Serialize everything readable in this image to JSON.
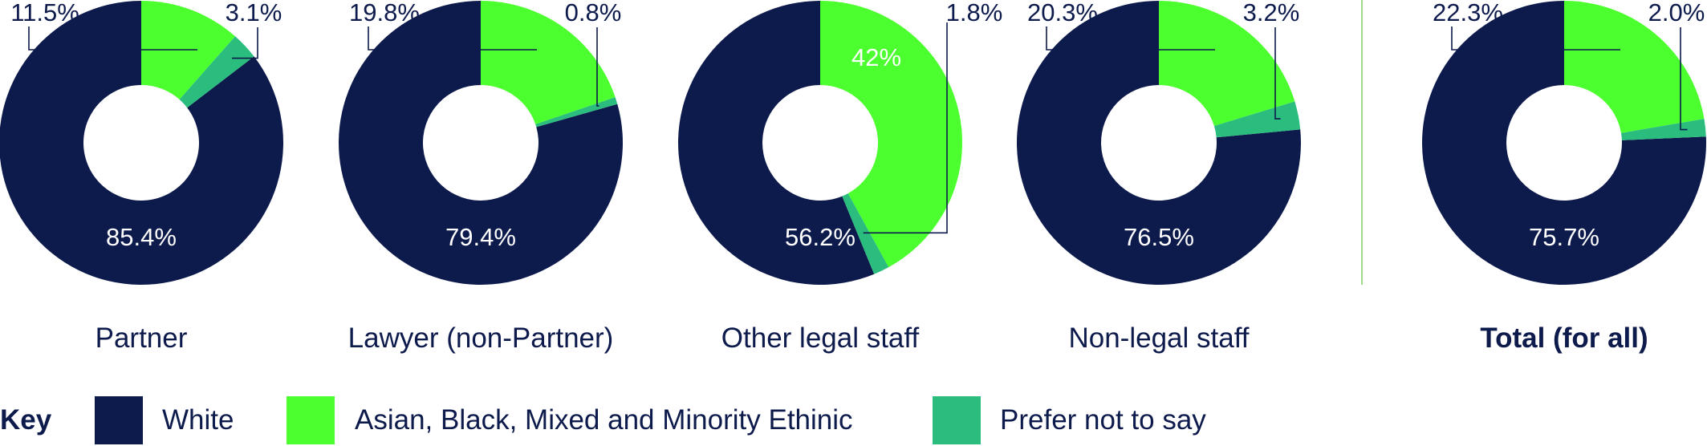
{
  "colors": {
    "white": "#0d1a4c",
    "minority": "#4cff2e",
    "prefer_not": "#2bbd7e",
    "divider": "#9fdc8a",
    "text_dark": "#0d1a4c"
  },
  "chart_data": [
    {
      "type": "pie",
      "title": "Partner",
      "categories": [
        "White",
        "Asian, Black, Mixed and Minority Ethinic",
        "Prefer not to say"
      ],
      "values": [
        85.4,
        11.5,
        3.1
      ],
      "labels": [
        "85.4%",
        "11.5%",
        "3.1%"
      ]
    },
    {
      "type": "pie",
      "title": "Lawyer (non-Partner)",
      "categories": [
        "White",
        "Asian, Black, Mixed and Minority Ethinic",
        "Prefer not to say"
      ],
      "values": [
        79.4,
        19.8,
        0.8
      ],
      "labels": [
        "79.4%",
        "19.8%",
        "0.8%"
      ]
    },
    {
      "type": "pie",
      "title": "Other legal staff",
      "categories": [
        "White",
        "Asian, Black, Mixed and Minority Ethinic",
        "Prefer not to say"
      ],
      "values": [
        56.2,
        42,
        1.8
      ],
      "labels": [
        "56.2%",
        "42%",
        "1.8%"
      ]
    },
    {
      "type": "pie",
      "title": "Non-legal staff",
      "categories": [
        "White",
        "Asian, Black, Mixed and Minority Ethinic",
        "Prefer not to say"
      ],
      "values": [
        76.5,
        20.3,
        3.2
      ],
      "labels": [
        "76.5%",
        "20.3%",
        "3.2%"
      ]
    },
    {
      "type": "pie",
      "title": "Total (for all)",
      "categories": [
        "White",
        "Asian, Black, Mixed and Minority Ethinic",
        "Prefer not to say"
      ],
      "values": [
        75.7,
        22.3,
        2.0
      ],
      "labels": [
        "75.7%",
        "22.3%",
        "2.0%"
      ]
    }
  ],
  "key": {
    "title": "Key",
    "items": [
      {
        "label": "White"
      },
      {
        "label": "Asian, Black, Mixed and Minority Ethinic"
      },
      {
        "label": "Prefer not to say"
      }
    ]
  }
}
